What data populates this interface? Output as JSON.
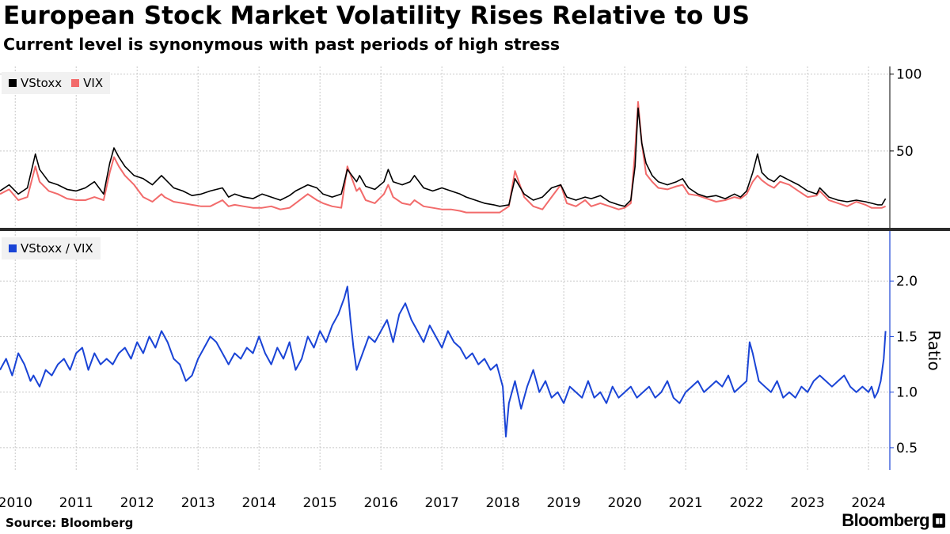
{
  "header": {
    "title": "European Stock Market Volatility Rises Relative to US",
    "subtitle": "Current level is synonymous with past periods of high stress"
  },
  "footer": {
    "source": "Source:  Bloomberg",
    "brand": "Bloomberg"
  },
  "colors": {
    "vstoxx": "#000000",
    "vix": "#f26b6b",
    "ratio": "#1a44d6",
    "grid": "#c8c8c8",
    "divider": "#2b2b2b"
  },
  "chart_data": [
    {
      "type": "line",
      "panel": "top",
      "legend": [
        "VStoxx",
        "VIX"
      ],
      "legend_position": "top-left",
      "ylabel": "",
      "ylim": [
        0,
        105
      ],
      "yticks": [
        50,
        100
      ],
      "ytick_labels": [
        "50",
        "100"
      ],
      "xlim": [
        2009.75,
        2024.35
      ],
      "xticks": [
        2010,
        2011,
        2012,
        2013,
        2014,
        2015,
        2016,
        2017,
        2018,
        2019,
        2020,
        2021,
        2022,
        2023,
        2024
      ],
      "xtick_labels": [
        "2010",
        "2011",
        "2012",
        "2013",
        "2014",
        "2015",
        "2016",
        "2017",
        "2018",
        "2019",
        "2020",
        "2021",
        "2022",
        "2023",
        "2024"
      ],
      "series": [
        {
          "name": "VStoxx",
          "x": [
            2009.75,
            2009.9,
            2010.05,
            2010.2,
            2010.33,
            2010.4,
            2010.55,
            2010.7,
            2010.85,
            2011.0,
            2011.15,
            2011.3,
            2011.45,
            2011.55,
            2011.62,
            2011.7,
            2011.8,
            2011.95,
            2012.1,
            2012.25,
            2012.4,
            2012.45,
            2012.6,
            2012.75,
            2012.9,
            2013.05,
            2013.2,
            2013.4,
            2013.5,
            2013.6,
            2013.75,
            2013.9,
            2014.05,
            2014.2,
            2014.35,
            2014.5,
            2014.6,
            2014.8,
            2014.95,
            2015.05,
            2015.2,
            2015.35,
            2015.45,
            2015.6,
            2015.65,
            2015.75,
            2015.9,
            2016.05,
            2016.12,
            2016.2,
            2016.35,
            2016.48,
            2016.55,
            2016.7,
            2016.85,
            2017.0,
            2017.15,
            2017.3,
            2017.4,
            2017.55,
            2017.7,
            2017.85,
            2017.95,
            2018.1,
            2018.2,
            2018.35,
            2018.5,
            2018.65,
            2018.8,
            2018.95,
            2019.05,
            2019.2,
            2019.35,
            2019.45,
            2019.6,
            2019.75,
            2019.9,
            2020.0,
            2020.1,
            2020.17,
            2020.22,
            2020.28,
            2020.35,
            2020.45,
            2020.55,
            2020.7,
            2020.85,
            2020.95,
            2021.05,
            2021.2,
            2021.35,
            2021.5,
            2021.65,
            2021.8,
            2021.9,
            2022.0,
            2022.1,
            2022.18,
            2022.25,
            2022.35,
            2022.45,
            2022.55,
            2022.7,
            2022.85,
            2023.0,
            2023.15,
            2023.2,
            2023.35,
            2023.5,
            2023.65,
            2023.8,
            2023.95,
            2024.05,
            2024.15,
            2024.22,
            2024.28
          ],
          "values": [
            24,
            28,
            22,
            26,
            48,
            38,
            30,
            28,
            25,
            24,
            26,
            30,
            22,
            42,
            52,
            46,
            40,
            34,
            32,
            28,
            34,
            32,
            26,
            24,
            21,
            22,
            24,
            26,
            20,
            22,
            20,
            19,
            22,
            20,
            18,
            21,
            24,
            28,
            26,
            22,
            20,
            22,
            38,
            30,
            34,
            27,
            25,
            30,
            38,
            30,
            28,
            30,
            34,
            26,
            24,
            26,
            24,
            22,
            20,
            18,
            16,
            15,
            14,
            15,
            32,
            22,
            18,
            20,
            26,
            28,
            20,
            18,
            20,
            19,
            21,
            17,
            15,
            14,
            18,
            40,
            78,
            55,
            42,
            34,
            30,
            28,
            30,
            32,
            26,
            22,
            20,
            21,
            19,
            22,
            20,
            24,
            36,
            48,
            36,
            32,
            30,
            34,
            31,
            28,
            24,
            22,
            26,
            20,
            18,
            17,
            18,
            17,
            16,
            15,
            15,
            19
          ]
        },
        {
          "name": "VIX",
          "x": [
            2009.75,
            2009.9,
            2010.05,
            2010.2,
            2010.33,
            2010.4,
            2010.55,
            2010.7,
            2010.85,
            2011.0,
            2011.15,
            2011.3,
            2011.45,
            2011.55,
            2011.62,
            2011.7,
            2011.8,
            2011.95,
            2012.1,
            2012.25,
            2012.4,
            2012.45,
            2012.6,
            2012.75,
            2012.9,
            2013.05,
            2013.2,
            2013.4,
            2013.5,
            2013.6,
            2013.75,
            2013.9,
            2014.05,
            2014.2,
            2014.35,
            2014.5,
            2014.6,
            2014.8,
            2014.95,
            2015.05,
            2015.2,
            2015.35,
            2015.45,
            2015.6,
            2015.65,
            2015.75,
            2015.9,
            2016.05,
            2016.12,
            2016.2,
            2016.35,
            2016.48,
            2016.55,
            2016.7,
            2016.85,
            2017.0,
            2017.15,
            2017.3,
            2017.4,
            2017.55,
            2017.7,
            2017.85,
            2017.95,
            2018.1,
            2018.2,
            2018.35,
            2018.5,
            2018.65,
            2018.8,
            2018.95,
            2019.05,
            2019.2,
            2019.35,
            2019.45,
            2019.6,
            2019.75,
            2019.9,
            2020.0,
            2020.1,
            2020.17,
            2020.22,
            2020.28,
            2020.35,
            2020.45,
            2020.55,
            2020.7,
            2020.85,
            2020.95,
            2021.05,
            2021.2,
            2021.35,
            2021.5,
            2021.65,
            2021.8,
            2021.9,
            2022.0,
            2022.1,
            2022.18,
            2022.25,
            2022.35,
            2022.45,
            2022.55,
            2022.7,
            2022.85,
            2023.0,
            2023.15,
            2023.2,
            2023.35,
            2023.5,
            2023.65,
            2023.8,
            2023.95,
            2024.05,
            2024.15,
            2024.22,
            2024.28
          ],
          "values": [
            22,
            25,
            18,
            20,
            40,
            30,
            24,
            22,
            19,
            18,
            18,
            20,
            18,
            36,
            46,
            40,
            34,
            28,
            20,
            17,
            22,
            20,
            17,
            16,
            15,
            14,
            14,
            18,
            14,
            15,
            14,
            13,
            13,
            14,
            12,
            13,
            16,
            22,
            18,
            16,
            14,
            13,
            40,
            24,
            26,
            18,
            16,
            22,
            28,
            20,
            16,
            15,
            18,
            14,
            13,
            12,
            12,
            11,
            10,
            10,
            10,
            10,
            10,
            14,
            37,
            20,
            14,
            12,
            20,
            28,
            16,
            14,
            18,
            14,
            16,
            14,
            12,
            13,
            16,
            50,
            82,
            55,
            35,
            30,
            26,
            25,
            27,
            28,
            22,
            21,
            19,
            17,
            18,
            20,
            19,
            22,
            30,
            34,
            31,
            28,
            26,
            30,
            28,
            24,
            20,
            21,
            24,
            18,
            16,
            14,
            17,
            15,
            13,
            13,
            13,
            14
          ]
        }
      ]
    },
    {
      "type": "line",
      "panel": "bottom",
      "legend": [
        "VStoxx / VIX"
      ],
      "legend_position": "top-left",
      "ylabel": "Ratio",
      "ylim": [
        0.3,
        2.45
      ],
      "yticks": [
        0.5,
        1.0,
        1.5,
        2.0
      ],
      "ytick_labels": [
        "0.5",
        "1.0",
        "1.5",
        "2.0"
      ],
      "xlim": [
        2009.75,
        2024.35
      ],
      "series": [
        {
          "name": "VStoxx / VIX",
          "x": [
            2009.75,
            2009.85,
            2009.95,
            2010.05,
            2010.15,
            2010.25,
            2010.3,
            2010.4,
            2010.5,
            2010.6,
            2010.7,
            2010.8,
            2010.9,
            2011.0,
            2011.1,
            2011.2,
            2011.3,
            2011.4,
            2011.5,
            2011.6,
            2011.7,
            2011.8,
            2011.9,
            2012.0,
            2012.1,
            2012.2,
            2012.3,
            2012.4,
            2012.5,
            2012.6,
            2012.7,
            2012.8,
            2012.9,
            2013.0,
            2013.1,
            2013.2,
            2013.3,
            2013.4,
            2013.5,
            2013.6,
            2013.7,
            2013.8,
            2013.9,
            2014.0,
            2014.1,
            2014.2,
            2014.3,
            2014.4,
            2014.5,
            2014.6,
            2014.7,
            2014.8,
            2014.9,
            2015.0,
            2015.1,
            2015.2,
            2015.3,
            2015.4,
            2015.45,
            2015.5,
            2015.55,
            2015.6,
            2015.7,
            2015.8,
            2015.9,
            2016.0,
            2016.1,
            2016.2,
            2016.3,
            2016.4,
            2016.5,
            2016.6,
            2016.7,
            2016.8,
            2016.9,
            2017.0,
            2017.1,
            2017.2,
            2017.3,
            2017.4,
            2017.5,
            2017.6,
            2017.7,
            2017.8,
            2017.9,
            2018.0,
            2018.05,
            2018.1,
            2018.2,
            2018.3,
            2018.4,
            2018.5,
            2018.6,
            2018.7,
            2018.8,
            2018.9,
            2019.0,
            2019.1,
            2019.2,
            2019.3,
            2019.4,
            2019.5,
            2019.6,
            2019.7,
            2019.8,
            2019.9,
            2020.0,
            2020.1,
            2020.2,
            2020.3,
            2020.4,
            2020.5,
            2020.6,
            2020.7,
            2020.8,
            2020.9,
            2021.0,
            2021.1,
            2021.2,
            2021.3,
            2021.4,
            2021.5,
            2021.6,
            2021.7,
            2021.8,
            2021.9,
            2022.0,
            2022.05,
            2022.1,
            2022.2,
            2022.3,
            2022.4,
            2022.5,
            2022.6,
            2022.7,
            2022.8,
            2022.9,
            2023.0,
            2023.1,
            2023.2,
            2023.3,
            2023.4,
            2023.5,
            2023.6,
            2023.7,
            2023.8,
            2023.9,
            2024.0,
            2024.05,
            2024.1,
            2024.15,
            2024.2,
            2024.25,
            2024.28
          ],
          "values": [
            1.2,
            1.3,
            1.15,
            1.35,
            1.25,
            1.1,
            1.15,
            1.05,
            1.2,
            1.15,
            1.25,
            1.3,
            1.2,
            1.35,
            1.4,
            1.2,
            1.35,
            1.25,
            1.3,
            1.25,
            1.35,
            1.4,
            1.3,
            1.45,
            1.35,
            1.5,
            1.4,
            1.55,
            1.45,
            1.3,
            1.25,
            1.1,
            1.15,
            1.3,
            1.4,
            1.5,
            1.45,
            1.35,
            1.25,
            1.35,
            1.3,
            1.4,
            1.35,
            1.5,
            1.35,
            1.25,
            1.4,
            1.3,
            1.45,
            1.2,
            1.3,
            1.5,
            1.4,
            1.55,
            1.45,
            1.6,
            1.7,
            1.85,
            1.95,
            1.65,
            1.4,
            1.2,
            1.35,
            1.5,
            1.45,
            1.55,
            1.65,
            1.45,
            1.7,
            1.8,
            1.65,
            1.55,
            1.45,
            1.6,
            1.5,
            1.4,
            1.55,
            1.45,
            1.4,
            1.3,
            1.35,
            1.25,
            1.3,
            1.2,
            1.25,
            1.05,
            0.6,
            0.9,
            1.1,
            0.85,
            1.05,
            1.2,
            1.0,
            1.1,
            0.95,
            1.0,
            0.9,
            1.05,
            1.0,
            0.95,
            1.1,
            0.95,
            1.0,
            0.9,
            1.05,
            0.95,
            1.0,
            1.05,
            0.95,
            1.0,
            1.05,
            0.95,
            1.0,
            1.1,
            0.95,
            0.9,
            1.0,
            1.05,
            1.1,
            1.0,
            1.05,
            1.1,
            1.05,
            1.15,
            1.0,
            1.05,
            1.1,
            1.45,
            1.35,
            1.1,
            1.05,
            1.0,
            1.1,
            0.95,
            1.0,
            0.95,
            1.05,
            1.0,
            1.1,
            1.15,
            1.1,
            1.05,
            1.1,
            1.15,
            1.05,
            1.0,
            1.05,
            1.0,
            1.05,
            0.95,
            1.0,
            1.1,
            1.3,
            1.55
          ]
        }
      ]
    }
  ]
}
